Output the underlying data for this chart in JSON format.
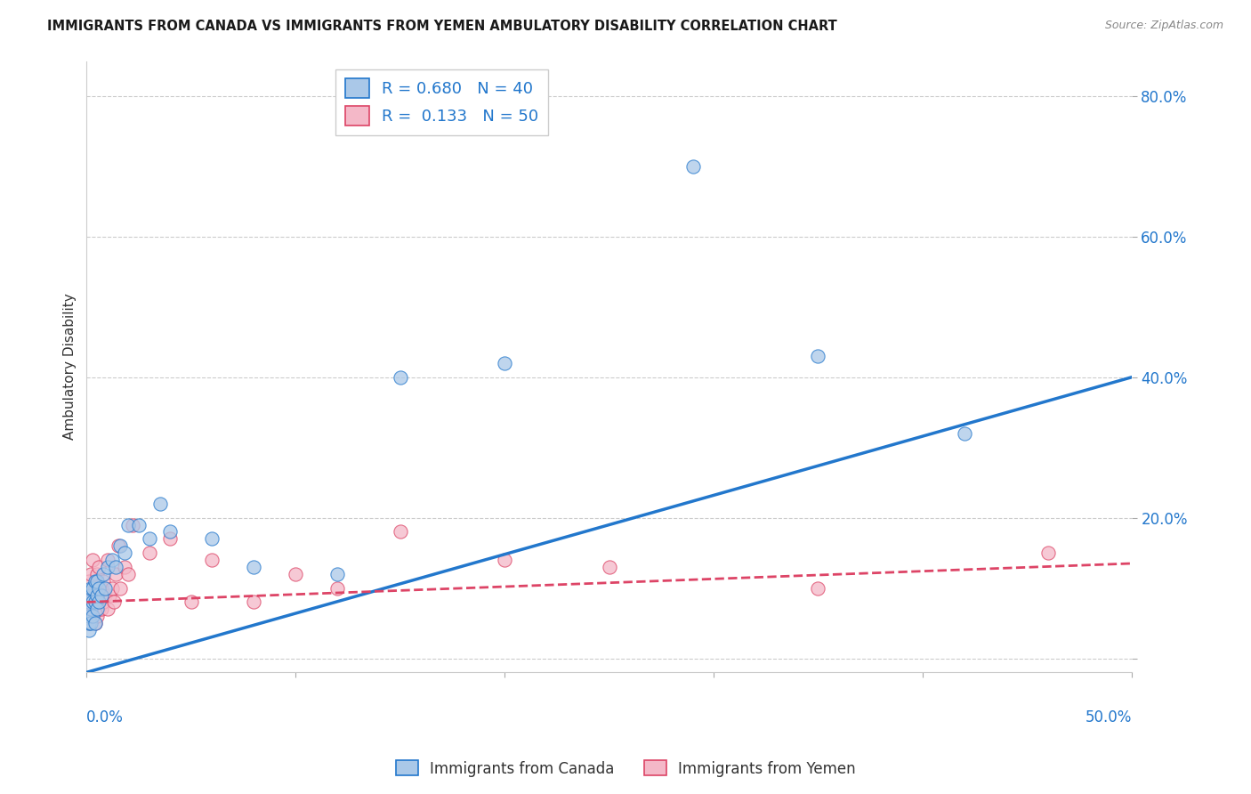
{
  "title": "IMMIGRANTS FROM CANADA VS IMMIGRANTS FROM YEMEN AMBULATORY DISABILITY CORRELATION CHART",
  "source": "Source: ZipAtlas.com",
  "ylabel": "Ambulatory Disability",
  "yticks": [
    0.0,
    0.2,
    0.4,
    0.6,
    0.8
  ],
  "xlim": [
    0.0,
    0.5
  ],
  "ylim": [
    -0.02,
    0.85
  ],
  "canada_R": 0.68,
  "canada_N": 40,
  "yemen_R": 0.133,
  "yemen_N": 50,
  "canada_color": "#aac8e8",
  "canada_line_color": "#2277cc",
  "yemen_color": "#f4b8c8",
  "yemen_line_color": "#dd4466",
  "background": "#ffffff",
  "grid_color": "#cccccc",
  "canada_line_x0": 0.0,
  "canada_line_y0": -0.02,
  "canada_line_x1": 0.5,
  "canada_line_y1": 0.4,
  "yemen_line_x0": 0.0,
  "yemen_line_y0": 0.08,
  "yemen_line_x1": 0.5,
  "yemen_line_y1": 0.135,
  "canada_points_x": [
    0.001,
    0.001,
    0.001,
    0.001,
    0.002,
    0.002,
    0.002,
    0.002,
    0.003,
    0.003,
    0.003,
    0.004,
    0.004,
    0.004,
    0.005,
    0.005,
    0.005,
    0.006,
    0.006,
    0.007,
    0.008,
    0.009,
    0.01,
    0.012,
    0.014,
    0.016,
    0.018,
    0.02,
    0.025,
    0.03,
    0.035,
    0.04,
    0.06,
    0.08,
    0.12,
    0.15,
    0.2,
    0.29,
    0.35,
    0.42
  ],
  "canada_points_y": [
    0.04,
    0.05,
    0.06,
    0.08,
    0.05,
    0.07,
    0.09,
    0.1,
    0.06,
    0.08,
    0.1,
    0.05,
    0.08,
    0.11,
    0.07,
    0.09,
    0.11,
    0.08,
    0.1,
    0.09,
    0.12,
    0.1,
    0.13,
    0.14,
    0.13,
    0.16,
    0.15,
    0.19,
    0.19,
    0.17,
    0.22,
    0.18,
    0.17,
    0.13,
    0.12,
    0.4,
    0.42,
    0.7,
    0.43,
    0.32
  ],
  "yemen_points_x": [
    0.001,
    0.001,
    0.001,
    0.001,
    0.001,
    0.002,
    0.002,
    0.002,
    0.002,
    0.003,
    0.003,
    0.003,
    0.003,
    0.004,
    0.004,
    0.004,
    0.005,
    0.005,
    0.005,
    0.006,
    0.006,
    0.006,
    0.007,
    0.007,
    0.008,
    0.008,
    0.009,
    0.01,
    0.01,
    0.011,
    0.012,
    0.013,
    0.014,
    0.015,
    0.016,
    0.018,
    0.02,
    0.022,
    0.03,
    0.04,
    0.05,
    0.06,
    0.08,
    0.1,
    0.12,
    0.15,
    0.2,
    0.25,
    0.35,
    0.46
  ],
  "yemen_points_y": [
    0.05,
    0.06,
    0.08,
    0.09,
    0.11,
    0.06,
    0.07,
    0.09,
    0.12,
    0.06,
    0.07,
    0.09,
    0.14,
    0.05,
    0.08,
    0.1,
    0.06,
    0.08,
    0.12,
    0.07,
    0.09,
    0.13,
    0.07,
    0.1,
    0.08,
    0.11,
    0.09,
    0.07,
    0.14,
    0.09,
    0.1,
    0.08,
    0.12,
    0.16,
    0.1,
    0.13,
    0.12,
    0.19,
    0.15,
    0.17,
    0.08,
    0.14,
    0.08,
    0.12,
    0.1,
    0.18,
    0.14,
    0.13,
    0.1,
    0.15
  ]
}
